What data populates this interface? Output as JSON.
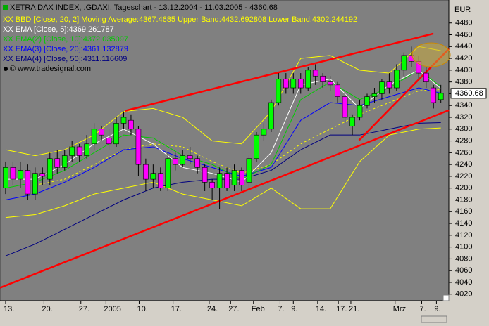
{
  "chart_data": {
    "type": "candlestick",
    "title": "XETRA DAX INDEX, .GDAXI, Tageschart - 13.12.2004 - 11.03.2005 - 4360.68",
    "copyright": "© www.tradesignal.com",
    "y_unit": "EUR",
    "last_price": 4360.68,
    "up_color": "#00ff00",
    "down_color": "#ff00ff",
    "xlim": [
      -0.76,
      60.08
    ],
    "ylim": [
      4009,
      4519
    ],
    "xticks": [
      {
        "value": 0,
        "label": "13."
      },
      {
        "value": 5.2,
        "label": "20."
      },
      {
        "value": 10.2,
        "label": "27."
      },
      {
        "value": 13.6,
        "label": "2005"
      },
      {
        "value": 18.1,
        "label": "10."
      },
      {
        "value": 22.7,
        "label": "17."
      },
      {
        "value": 27.6,
        "label": "24."
      },
      {
        "value": 30.5,
        "label": "27."
      },
      {
        "value": 33.6,
        "label": "Feb"
      },
      {
        "value": 37.2,
        "label": "7."
      },
      {
        "value": 39,
        "label": "9."
      },
      {
        "value": 42.3,
        "label": "14."
      },
      {
        "value": 45.1,
        "label": "17."
      },
      {
        "value": 46.8,
        "label": "21."
      },
      {
        "value": 52.8,
        "label": "Mrz"
      },
      {
        "value": 56.4,
        "label": "7."
      },
      {
        "value": 58.4,
        "label": "9."
      }
    ],
    "yticks": [
      4020,
      4040,
      4060,
      4080,
      4100,
      4120,
      4140,
      4160,
      4180,
      4200,
      4220,
      4240,
      4260,
      4280,
      4300,
      4320,
      4340,
      4360,
      4380,
      4400,
      4420,
      4440,
      4460,
      4480
    ],
    "open": [
      4200,
      4235,
      4215,
      4230,
      4190,
      4225,
      4215,
      4250,
      4235,
      4255,
      4270,
      4255,
      4275,
      4300,
      4285,
      4275,
      4310,
      4315,
      4300,
      4240,
      4215,
      4225,
      4200,
      4250,
      4240,
      4255,
      4250,
      4235,
      4210,
      4200,
      4225,
      4205,
      4230,
      4210,
      4250,
      4290,
      4300,
      4345,
      4385,
      4370,
      4385,
      4370,
      4400,
      4390,
      4380,
      4375,
      4355,
      4305,
      4320,
      4340,
      4355,
      4360,
      4380,
      4370,
      4400,
      4425,
      4415,
      4395,
      4370,
      4350
    ],
    "high": [
      4245,
      4245,
      4245,
      4240,
      4235,
      4235,
      4260,
      4265,
      4265,
      4280,
      4275,
      4290,
      4310,
      4305,
      4300,
      4320,
      4330,
      4325,
      4305,
      4250,
      4240,
      4235,
      4260,
      4260,
      4265,
      4270,
      4255,
      4240,
      4215,
      4235,
      4235,
      4240,
      4235,
      4255,
      4295,
      4310,
      4350,
      4395,
      4395,
      4395,
      4395,
      4405,
      4410,
      4395,
      4390,
      4380,
      4360,
      4325,
      4350,
      4360,
      4370,
      4385,
      4395,
      4410,
      4430,
      4440,
      4425,
      4405,
      4375,
      4375
    ],
    "low": [
      4190,
      4205,
      4200,
      4180,
      4180,
      4205,
      4205,
      4225,
      4230,
      4245,
      4245,
      4250,
      4265,
      4280,
      4265,
      4270,
      4300,
      4290,
      4220,
      4195,
      4200,
      4195,
      4195,
      4230,
      4235,
      4240,
      4225,
      4195,
      4180,
      4165,
      4195,
      4195,
      4195,
      4200,
      4245,
      4280,
      4295,
      4340,
      4360,
      4360,
      4360,
      4365,
      4375,
      4370,
      4365,
      4345,
      4310,
      4290,
      4315,
      4335,
      4345,
      4350,
      4360,
      4365,
      4390,
      4405,
      4385,
      4370,
      4335,
      4345
    ],
    "close": [
      4235,
      4215,
      4230,
      4190,
      4225,
      4220,
      4250,
      4235,
      4255,
      4270,
      4255,
      4275,
      4300,
      4290,
      4275,
      4310,
      4320,
      4300,
      4240,
      4215,
      4225,
      4200,
      4250,
      4240,
      4255,
      4250,
      4235,
      4210,
      4200,
      4225,
      4200,
      4230,
      4205,
      4250,
      4290,
      4300,
      4345,
      4385,
      4370,
      4385,
      4370,
      4400,
      4390,
      4380,
      4375,
      4355,
      4320,
      4320,
      4340,
      4355,
      4360,
      4380,
      4370,
      4400,
      4425,
      4415,
      4395,
      4380,
      4345,
      4360.68
    ],
    "line_x": [
      0,
      4,
      8,
      12,
      16,
      20,
      24,
      28,
      32,
      36,
      40,
      44,
      48,
      52,
      56,
      59
    ],
    "bollinger": {
      "name": "XX BBD [Close, 20, 2] Moving Average:4367.4685 Upper Band:4432.692808 Lower Band:4302.244192",
      "color": "#ffff00",
      "upper": [
        4265,
        4255,
        4265,
        4290,
        4330,
        4335,
        4320,
        4280,
        4275,
        4330,
        4420,
        4425,
        4400,
        4395,
        4440,
        4433
      ],
      "middle": [
        4205,
        4205,
        4215,
        4240,
        4265,
        4275,
        4270,
        4245,
        4225,
        4240,
        4275,
        4300,
        4325,
        4345,
        4365,
        4367
      ],
      "lower": [
        4150,
        4155,
        4170,
        4190,
        4200,
        4210,
        4190,
        4180,
        4170,
        4200,
        4165,
        4165,
        4245,
        4290,
        4300,
        4302
      ]
    },
    "series": [
      {
        "name": "XX EMA [Close, 5]:4369.261787",
        "color": "#ffffff",
        "values": [
          4215,
          4215,
          4240,
          4275,
          4300,
          4275,
          4235,
          4225,
          4210,
          4260,
          4375,
          4385,
          4335,
          4375,
          4400,
          4369
        ]
      },
      {
        "name": "XX EMA(2) [Close, 10]:4372.035097",
        "color": "#00cc00",
        "values": [
          4200,
          4210,
          4230,
          4260,
          4290,
          4285,
          4255,
          4240,
          4215,
          4240,
          4350,
          4380,
          4350,
          4370,
          4400,
          4372
        ]
      },
      {
        "name": "XX EMA(3) [Close, 20]:4361.132879",
        "color": "#0000ff",
        "values": [
          4180,
          4190,
          4210,
          4235,
          4265,
          4270,
          4250,
          4235,
          4220,
          4235,
          4315,
          4345,
          4340,
          4355,
          4370,
          4361
        ]
      },
      {
        "name": "XX EMA(4) [Close, 50]:4311.116609",
        "color": "#000080",
        "values": [
          4085,
          4105,
          4130,
          4155,
          4180,
          4200,
          4210,
          4215,
          4215,
          4230,
          4265,
          4290,
          4290,
          4300,
          4310,
          4311
        ]
      }
    ],
    "trend_color": "#ff0000",
    "trendlines": [
      {
        "x": [
          16.2,
          58
        ],
        "y": [
          4331,
          4462
        ]
      },
      {
        "x": [
          -0.76,
          60.08
        ],
        "y": [
          4031,
          4332
        ]
      },
      {
        "x": [
          47.9,
          60.08
        ],
        "y": [
          4281,
          4436
        ]
      }
    ]
  }
}
